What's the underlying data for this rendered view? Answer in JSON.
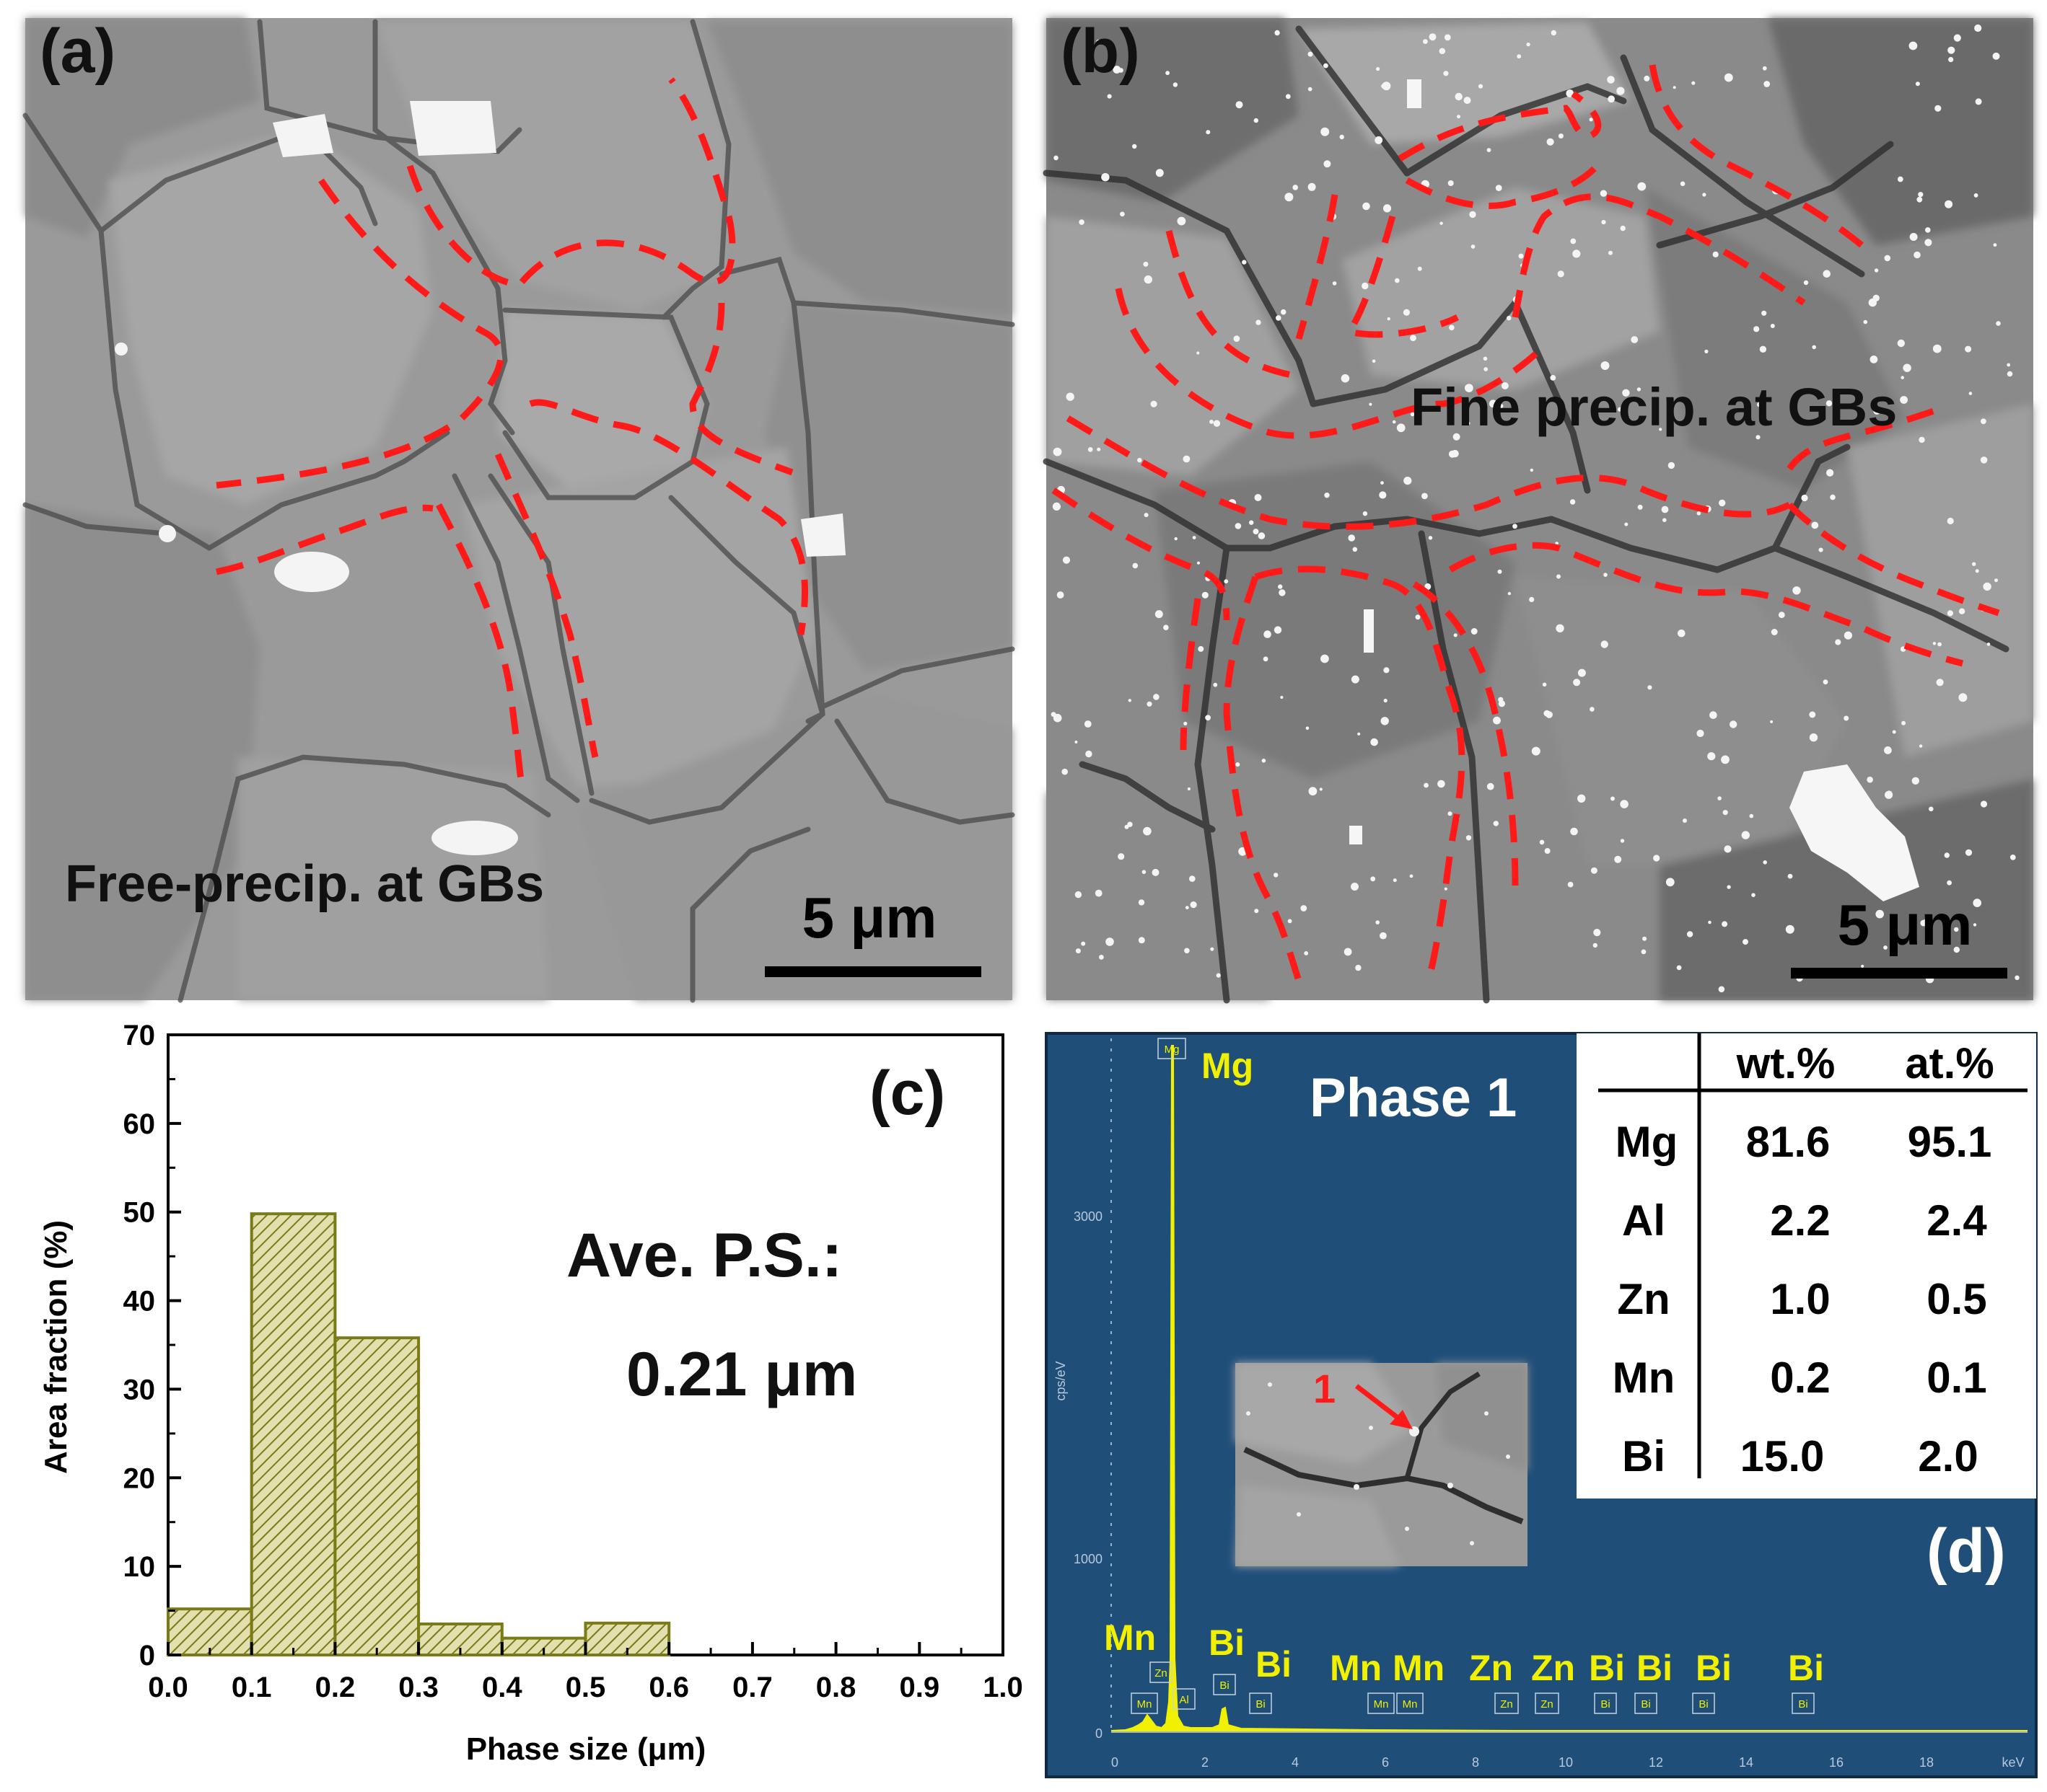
{
  "panel_a": {
    "label": "(a)",
    "annotation": "Free-precip. at GBs",
    "scale_bar": "5 μm"
  },
  "panel_b": {
    "label": "(b)",
    "annotation": "Fine precip. at GBs",
    "scale_bar": "5 μm"
  },
  "panel_c": {
    "label": "(c)",
    "avg_label": "Ave. P.S.:",
    "avg_value": "0.21 μm"
  },
  "panel_d": {
    "label": "(d)",
    "phase_label": "Phase 1",
    "arrow_label": "1",
    "y_ticks": [
      "0",
      "1000",
      "3000"
    ],
    "y_axis_label": "cps/eV",
    "x_ticks": [
      "0",
      "2",
      "4",
      "6",
      "8",
      "10",
      "12",
      "14",
      "16",
      "18"
    ],
    "x_unit": "keV",
    "peak_labels_large": [
      "Mg",
      "Mn",
      "Bi",
      "Bi",
      "Mn",
      "Mn",
      "Zn",
      "Zn",
      "Bi",
      "Bi",
      "Bi",
      "Bi"
    ],
    "peak_labels_small": [
      "Mg",
      "Zn",
      "Mn",
      "Al",
      "Bi",
      "Bi",
      "Mn",
      "Mn",
      "Zn",
      "Zn",
      "Bi",
      "Bi",
      "Bi",
      "Bi"
    ],
    "composition_table": {
      "headers": [
        "",
        "wt.%",
        "at.%"
      ],
      "rows": [
        [
          "Mg",
          "81.6",
          "95.1"
        ],
        [
          "Al",
          "2.2",
          "2.4"
        ],
        [
          "Zn",
          "1.0",
          "0.5"
        ],
        [
          "Mn",
          "0.2",
          "0.1"
        ],
        [
          "Bi",
          "15.0",
          "2.0"
        ]
      ]
    }
  },
  "colors": {
    "hist_fill": "#d9d6a0",
    "hist_stroke": "#7a7a16",
    "eds_bg": "#1f4e79",
    "eds_peak": "#f0f000",
    "gb_marker": "#ff1a1a"
  },
  "chart_data": {
    "type": "bar",
    "xlabel": "Phase size (μm)",
    "ylabel": "Area fraction (%)",
    "xlim": [
      0.0,
      1.0
    ],
    "ylim": [
      0,
      70
    ],
    "x_ticks": [
      "0.0",
      "0.1",
      "0.2",
      "0.3",
      "0.4",
      "0.5",
      "0.6",
      "0.7",
      "0.8",
      "0.9",
      "1.0"
    ],
    "y_ticks": [
      "0",
      "10",
      "20",
      "30",
      "40",
      "50",
      "60",
      "70"
    ],
    "bins": [
      {
        "from": 0.0,
        "to": 0.1,
        "value": 5.2
      },
      {
        "from": 0.1,
        "to": 0.2,
        "value": 49.8
      },
      {
        "from": 0.2,
        "to": 0.3,
        "value": 35.8
      },
      {
        "from": 0.3,
        "to": 0.4,
        "value": 3.5
      },
      {
        "from": 0.4,
        "to": 0.5,
        "value": 1.9
      },
      {
        "from": 0.5,
        "to": 0.6,
        "value": 3.6
      }
    ],
    "grid": false
  }
}
